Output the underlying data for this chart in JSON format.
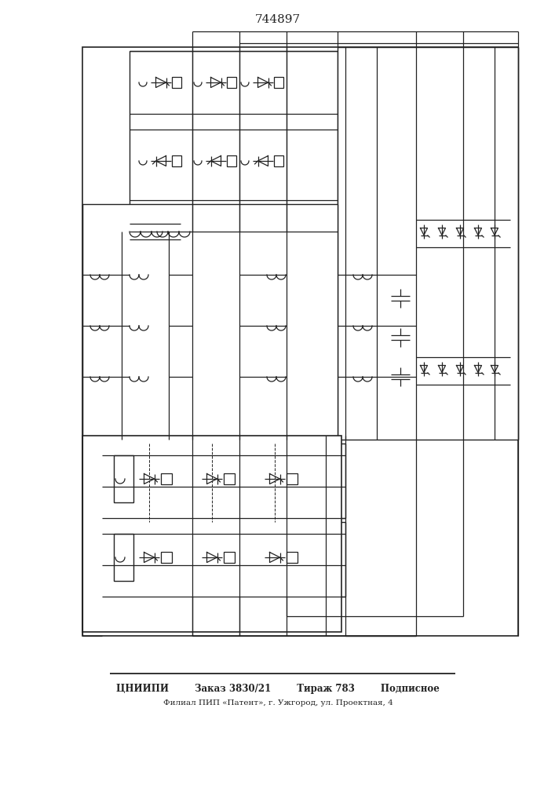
{
  "title": "744897",
  "footer_line1": "ЦНИИПИ        Заказ 3830/21        Тираж 783        Подписное",
  "footer_line2": "Филиал ПИП «Патент», г. Ужгород, ул. Проектная, 4",
  "bg_color": "#ffffff",
  "line_color": "#222222",
  "fig_width": 7.07,
  "fig_height": 10.0
}
